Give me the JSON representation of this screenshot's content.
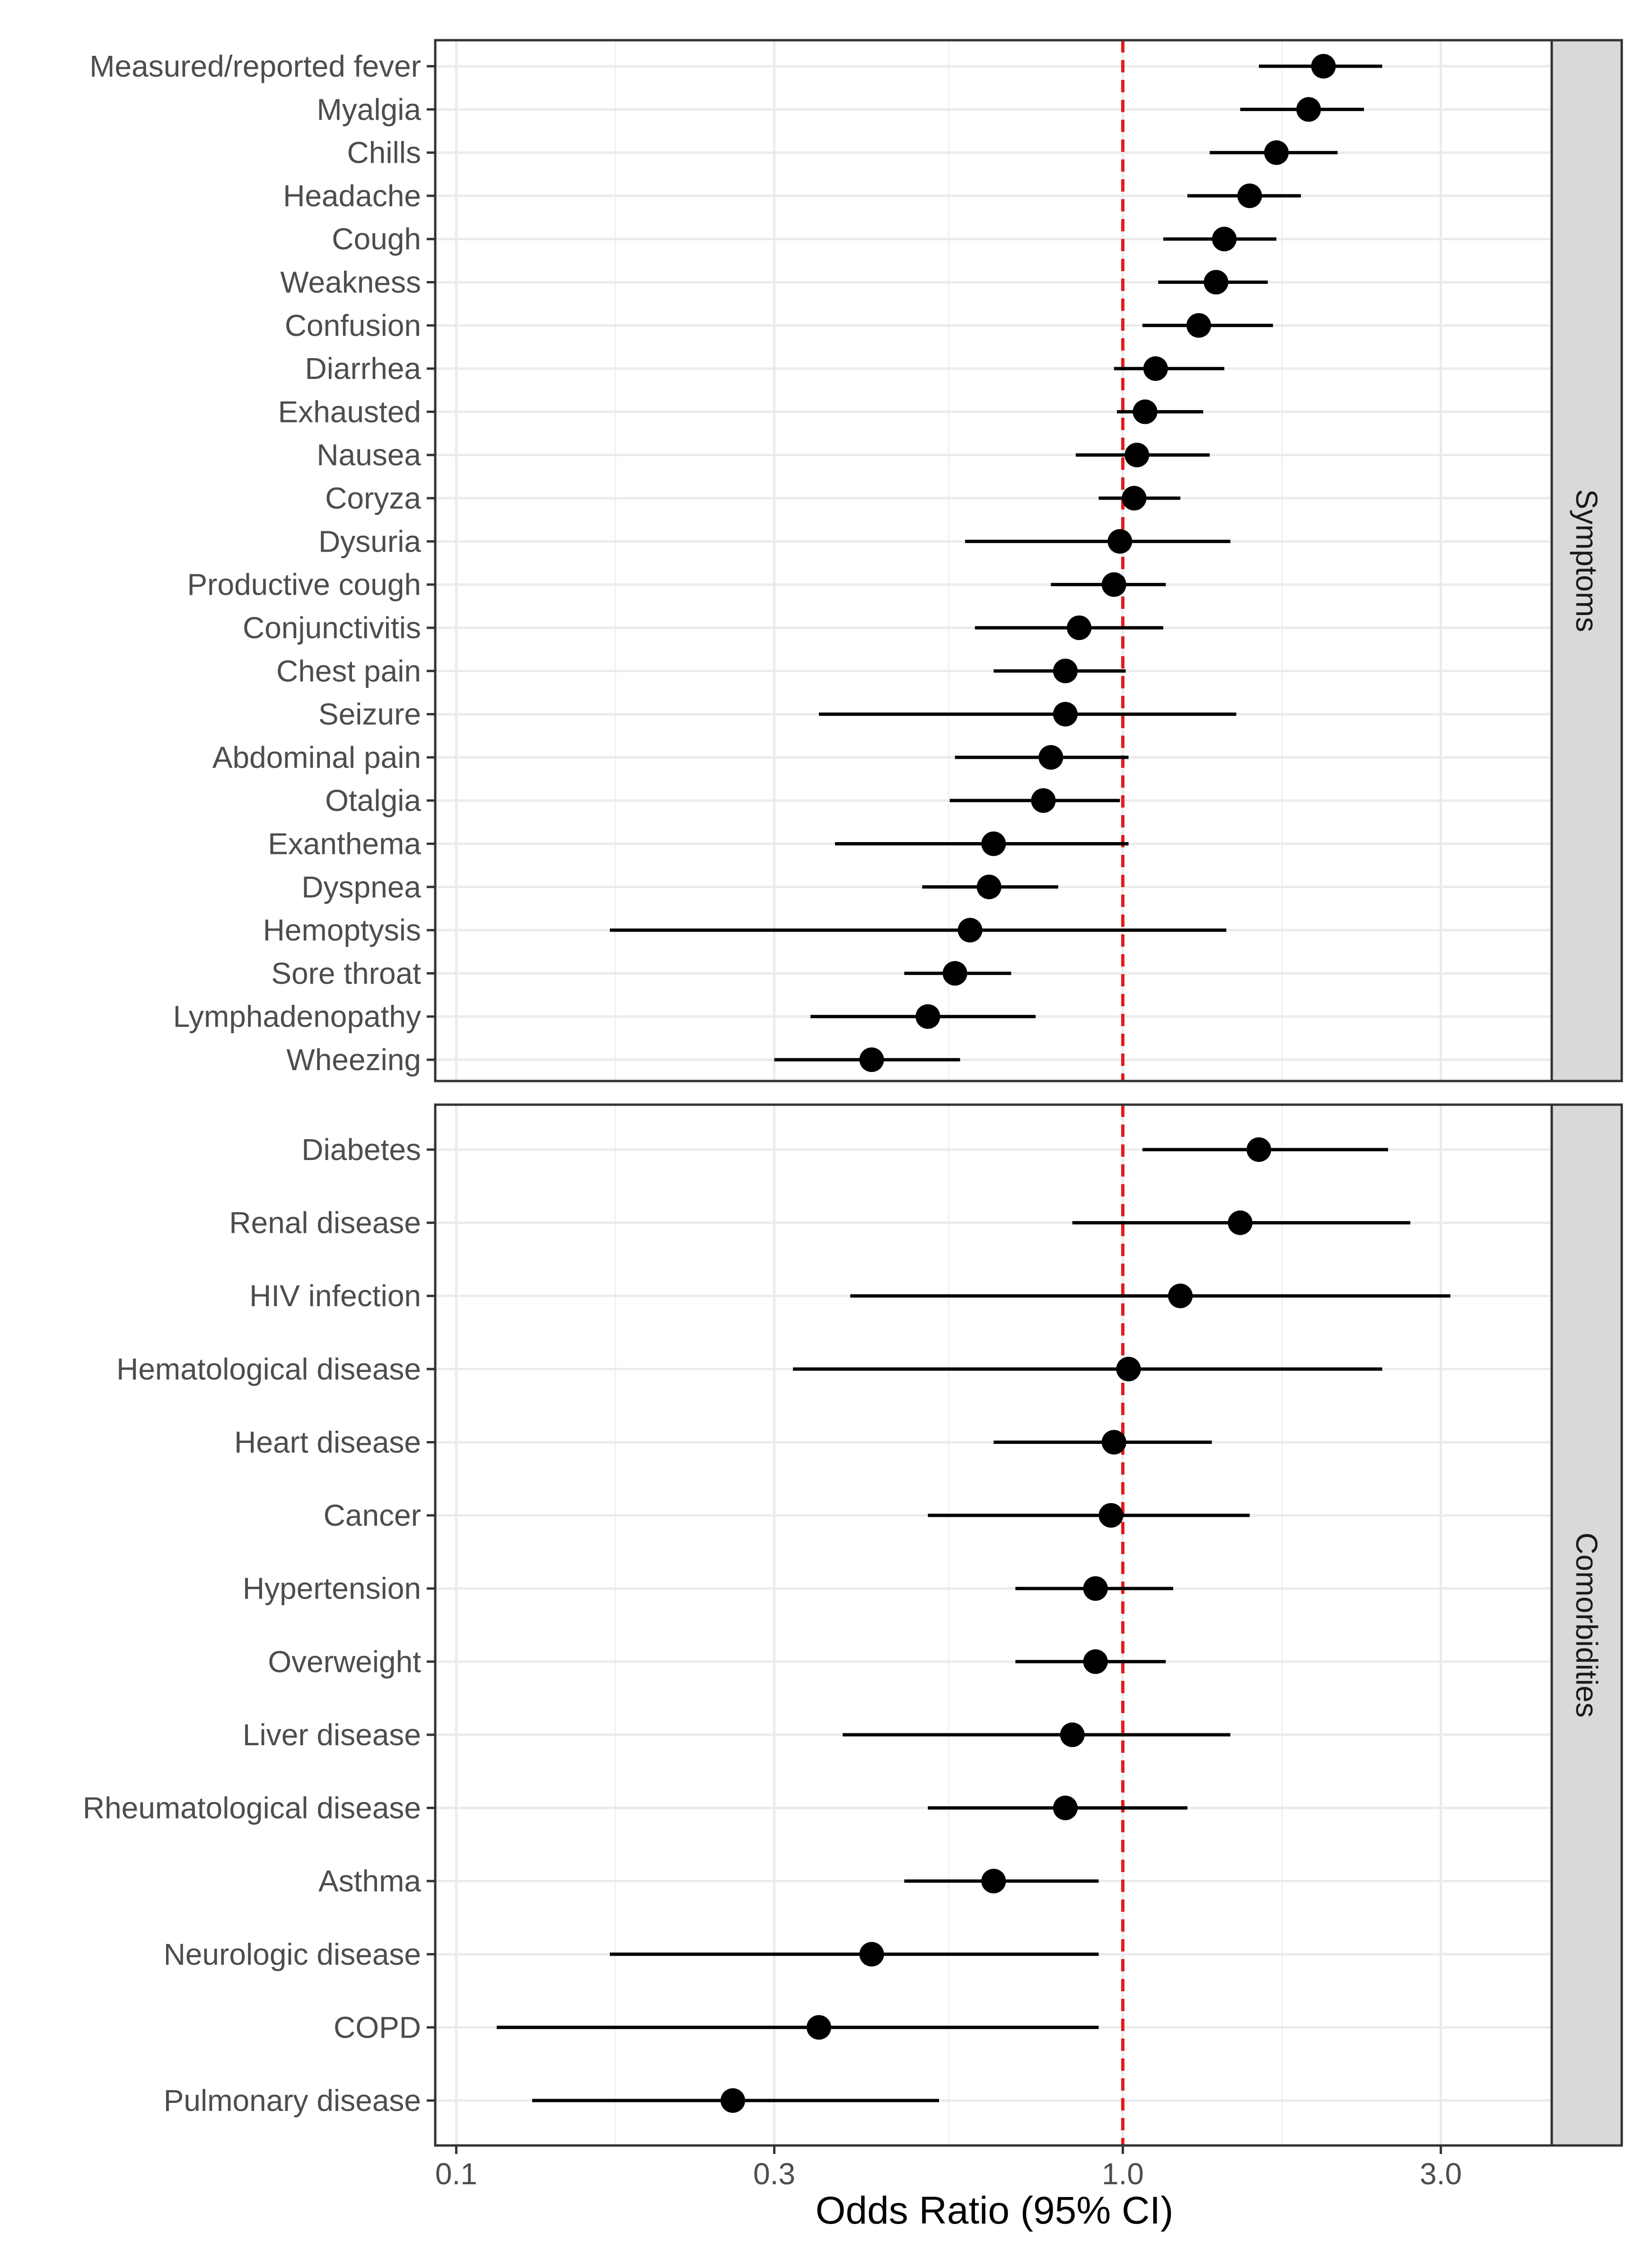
{
  "chart_data": {
    "type": "forest",
    "xlabel": "Odds Ratio (95% CI)",
    "xscale": "log10",
    "xlim": [
      0.093,
      4.4
    ],
    "xticks": [
      0.1,
      0.3,
      1.0,
      3.0
    ],
    "xtick_labels": [
      "0.1",
      "0.3",
      "1.0",
      "3.0"
    ],
    "reference_line": {
      "x": 1.0,
      "color": "#e41a1c",
      "style": "dashed"
    },
    "grid": true,
    "panels": [
      {
        "name": "Symptoms",
        "rows": [
          {
            "label": "Measured/reported fever",
            "or": 2.0,
            "lo": 1.6,
            "hi": 2.45
          },
          {
            "label": "Myalgia",
            "or": 1.9,
            "lo": 1.5,
            "hi": 2.3
          },
          {
            "label": "Chills",
            "or": 1.7,
            "lo": 1.35,
            "hi": 2.1
          },
          {
            "label": "Headache",
            "or": 1.55,
            "lo": 1.25,
            "hi": 1.85
          },
          {
            "label": "Cough",
            "or": 1.42,
            "lo": 1.15,
            "hi": 1.7
          },
          {
            "label": "Weakness",
            "or": 1.38,
            "lo": 1.13,
            "hi": 1.65
          },
          {
            "label": "Confusion",
            "or": 1.3,
            "lo": 1.07,
            "hi": 1.68
          },
          {
            "label": "Diarrhea",
            "or": 1.12,
            "lo": 0.97,
            "hi": 1.42
          },
          {
            "label": "Exhausted",
            "or": 1.08,
            "lo": 0.98,
            "hi": 1.32
          },
          {
            "label": "Nausea",
            "or": 1.05,
            "lo": 0.85,
            "hi": 1.35
          },
          {
            "label": "Coryza",
            "or": 1.04,
            "lo": 0.92,
            "hi": 1.22
          },
          {
            "label": "Dysuria",
            "or": 0.99,
            "lo": 0.58,
            "hi": 1.45
          },
          {
            "label": "Productive cough",
            "or": 0.97,
            "lo": 0.78,
            "hi": 1.16
          },
          {
            "label": "Conjunctivitis",
            "or": 0.86,
            "lo": 0.6,
            "hi": 1.15
          },
          {
            "label": "Chest pain",
            "or": 0.82,
            "lo": 0.64,
            "hi": 1.01
          },
          {
            "label": "Seizure",
            "or": 0.82,
            "lo": 0.35,
            "hi": 1.48
          },
          {
            "label": "Abdominal pain",
            "or": 0.78,
            "lo": 0.56,
            "hi": 1.02
          },
          {
            "label": "Otalgia",
            "or": 0.76,
            "lo": 0.55,
            "hi": 0.99
          },
          {
            "label": "Exanthema",
            "or": 0.64,
            "lo": 0.37,
            "hi": 1.02
          },
          {
            "label": "Dyspnea",
            "or": 0.63,
            "lo": 0.5,
            "hi": 0.8
          },
          {
            "label": "Hemoptysis",
            "or": 0.59,
            "lo": 0.17,
            "hi": 1.43
          },
          {
            "label": "Sore throat",
            "or": 0.56,
            "lo": 0.47,
            "hi": 0.68
          },
          {
            "label": "Lymphadenopathy",
            "or": 0.51,
            "lo": 0.34,
            "hi": 0.74
          },
          {
            "label": "Wheezing",
            "or": 0.42,
            "lo": 0.3,
            "hi": 0.57
          }
        ]
      },
      {
        "name": "Comorbidities",
        "rows": [
          {
            "label": "Diabetes",
            "or": 1.6,
            "lo": 1.07,
            "hi": 2.5
          },
          {
            "label": "Renal disease",
            "or": 1.5,
            "lo": 0.84,
            "hi": 2.7
          },
          {
            "label": "HIV infection",
            "or": 1.22,
            "lo": 0.39,
            "hi": 3.1
          },
          {
            "label": "Hematological disease",
            "or": 1.02,
            "lo": 0.32,
            "hi": 2.45
          },
          {
            "label": "Heart disease",
            "or": 0.97,
            "lo": 0.64,
            "hi": 1.36
          },
          {
            "label": "Cancer",
            "or": 0.96,
            "lo": 0.51,
            "hi": 1.55
          },
          {
            "label": "Hypertension",
            "or": 0.91,
            "lo": 0.69,
            "hi": 1.19
          },
          {
            "label": "Overweight",
            "or": 0.91,
            "lo": 0.69,
            "hi": 1.16
          },
          {
            "label": "Liver disease",
            "or": 0.84,
            "lo": 0.38,
            "hi": 1.45
          },
          {
            "label": "Rheumatological disease ",
            "or": 0.82,
            "lo": 0.51,
            "hi": 1.25
          },
          {
            "label": "Asthma",
            "or": 0.64,
            "lo": 0.47,
            "hi": 0.92
          },
          {
            "label": "Neurologic disease",
            "or": 0.42,
            "lo": 0.17,
            "hi": 0.92
          },
          {
            "label": "COPD",
            "or": 0.35,
            "lo": 0.115,
            "hi": 0.92
          },
          {
            "label": "Pulmonary disease",
            "or": 0.26,
            "lo": 0.13,
            "hi": 0.53
          }
        ]
      }
    ]
  }
}
